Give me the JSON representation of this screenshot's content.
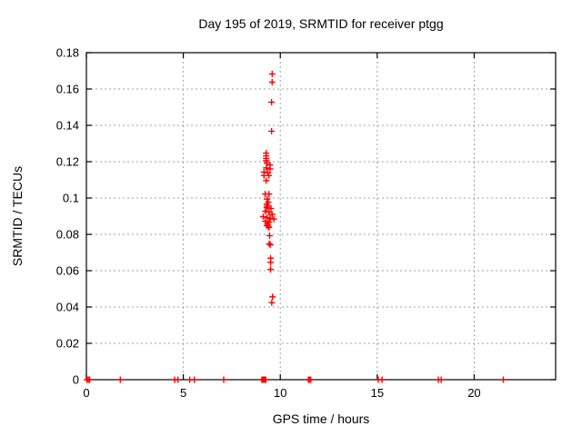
{
  "chart_data": {
    "type": "scatter",
    "title": "Day 195 of 2019, SRMTID for receiver ptgg",
    "xlabel": "GPS time / hours",
    "ylabel": "SRMTID / TECUs",
    "xlim": [
      0,
      24.2
    ],
    "ylim": [
      0,
      0.18
    ],
    "xticks": {
      "values": [
        0,
        5,
        10,
        15,
        20
      ],
      "labels": [
        "0",
        "5",
        "10",
        "15",
        "20"
      ]
    },
    "yticks": {
      "values": [
        0,
        0.02,
        0.04,
        0.06,
        0.08,
        0.1,
        0.12,
        0.14,
        0.16,
        0.18
      ],
      "labels": [
        "0",
        "0.02",
        "0.04",
        "0.06",
        "0.08",
        "0.1",
        "0.12",
        "0.14",
        "0.16",
        "0.18"
      ]
    },
    "grid": true,
    "legend": "none",
    "marker": {
      "shape": "plus",
      "color": "#ff0000",
      "size": 7
    },
    "series": [
      {
        "name": "SRMTID",
        "points": [
          [
            9.58,
            0.1683
          ],
          [
            9.58,
            0.1638
          ],
          [
            9.55,
            0.1528
          ],
          [
            9.55,
            0.1368
          ],
          [
            9.27,
            0.1247
          ],
          [
            9.27,
            0.1232
          ],
          [
            9.27,
            0.1218
          ],
          [
            9.27,
            0.1205
          ],
          [
            9.31,
            0.1192
          ],
          [
            9.47,
            0.1182
          ],
          [
            9.27,
            0.1166
          ],
          [
            9.47,
            0.116
          ],
          [
            9.16,
            0.1143
          ],
          [
            9.36,
            0.1139
          ],
          [
            9.16,
            0.1124
          ],
          [
            9.41,
            0.1124
          ],
          [
            9.27,
            0.1096
          ],
          [
            9.22,
            0.1022
          ],
          [
            9.42,
            0.1022
          ],
          [
            9.32,
            0.0994
          ],
          [
            9.38,
            0.0977
          ],
          [
            9.3,
            0.0966
          ],
          [
            9.34,
            0.0956
          ],
          [
            9.3,
            0.0948
          ],
          [
            9.52,
            0.0943
          ],
          [
            9.22,
            0.0927
          ],
          [
            9.42,
            0.0922
          ],
          [
            9.58,
            0.091
          ],
          [
            9.12,
            0.0898
          ],
          [
            9.32,
            0.0893
          ],
          [
            9.48,
            0.0888
          ],
          [
            9.67,
            0.0884
          ],
          [
            9.22,
            0.0872
          ],
          [
            9.42,
            0.0867
          ],
          [
            9.35,
            0.0856
          ],
          [
            9.3,
            0.0848
          ],
          [
            9.38,
            0.0846
          ],
          [
            9.42,
            0.0838
          ],
          [
            9.45,
            0.0793
          ],
          [
            9.43,
            0.0748
          ],
          [
            9.48,
            0.0743
          ],
          [
            9.5,
            0.0669
          ],
          [
            9.5,
            0.0646
          ],
          [
            9.5,
            0.0607
          ],
          [
            9.6,
            0.0456
          ],
          [
            9.56,
            0.0424
          ],
          [
            0.03,
            0
          ],
          [
            0.1,
            0
          ],
          [
            0.17,
            0
          ],
          [
            1.75,
            0
          ],
          [
            4.55,
            0
          ],
          [
            4.72,
            0
          ],
          [
            5.33,
            0
          ],
          [
            5.57,
            0
          ],
          [
            7.08,
            0
          ],
          [
            9.05,
            0
          ],
          [
            9.1,
            0
          ],
          [
            9.15,
            0
          ],
          [
            9.2,
            0
          ],
          [
            9.25,
            0
          ],
          [
            11.45,
            0
          ],
          [
            11.5,
            0
          ],
          [
            11.57,
            0
          ],
          [
            15.05,
            0
          ],
          [
            15.25,
            0
          ],
          [
            18.15,
            0
          ],
          [
            18.3,
            0
          ],
          [
            21.5,
            0
          ]
        ]
      }
    ]
  },
  "colors": {
    "background": "#ffffff",
    "grid": "#a0a0a0",
    "axis": "#000000",
    "marker": "#ff0000",
    "text": "#000000"
  }
}
